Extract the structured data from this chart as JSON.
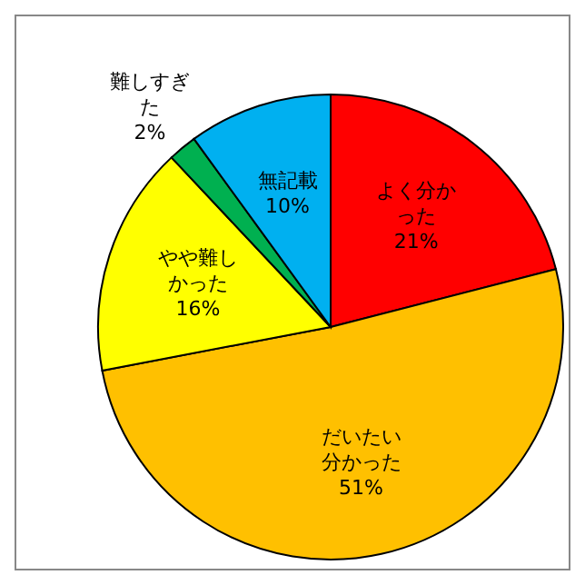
{
  "chart_data": {
    "type": "pie",
    "categories": [
      "よく分かった",
      "だいたい分かった",
      "やや難しかった",
      "難しすぎた",
      "無記載"
    ],
    "values": [
      21,
      51,
      16,
      2,
      10
    ],
    "value_labels": [
      "21%",
      "51%",
      "16%",
      "2%",
      "10%"
    ],
    "colors": [
      "#ff0000",
      "#ffc000",
      "#ffff00",
      "#00b050",
      "#00b0f0"
    ]
  }
}
